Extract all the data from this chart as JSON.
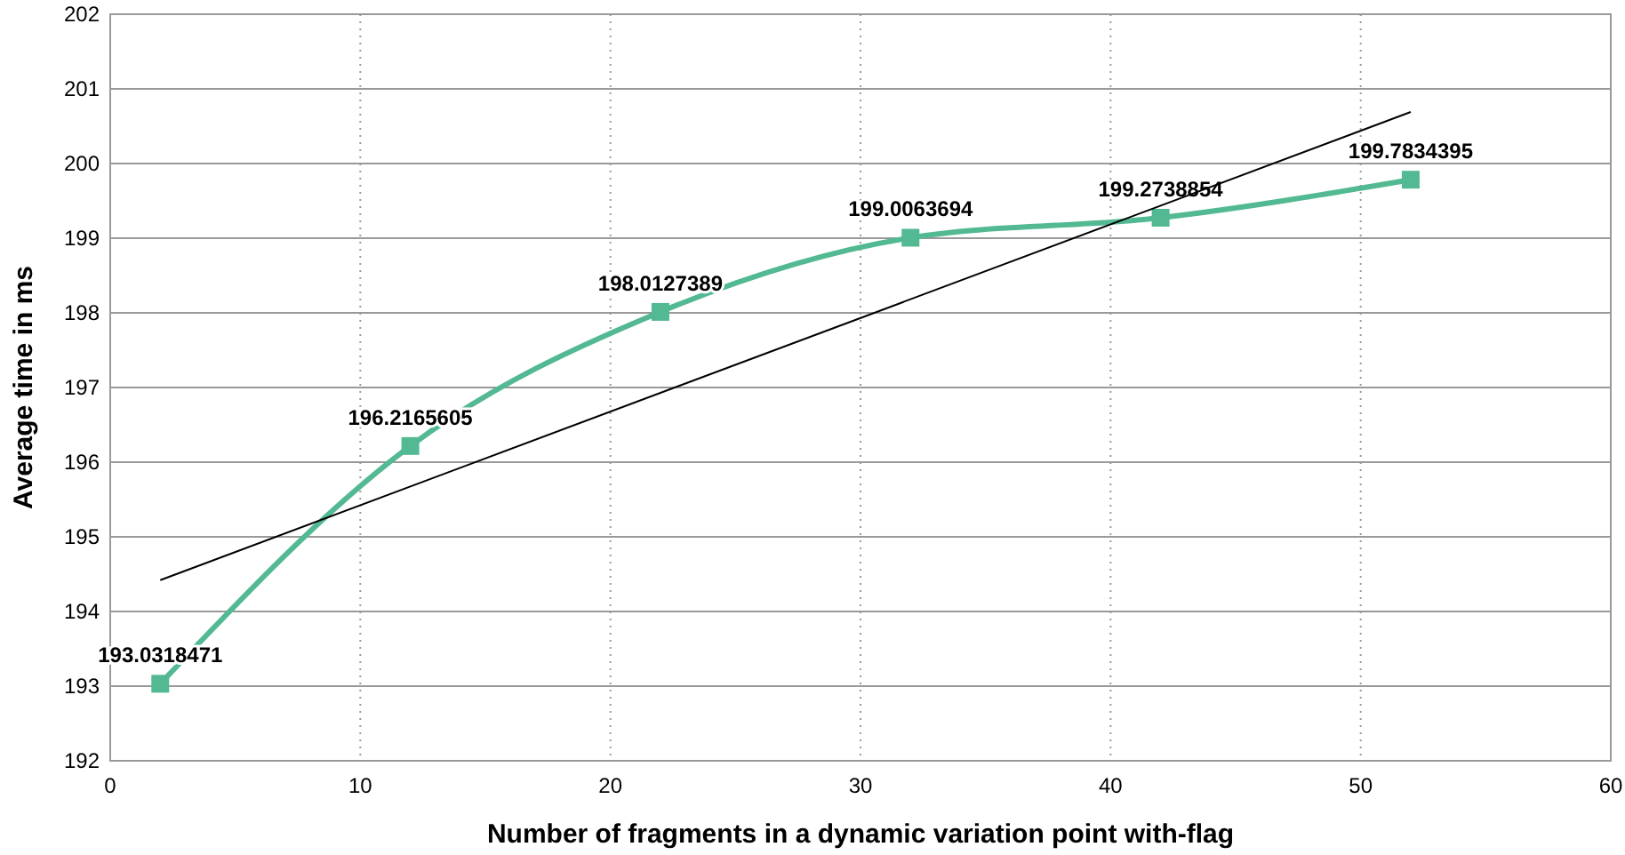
{
  "chart_data": {
    "type": "line",
    "xlabel": "Number of fragments in a dynamic variation point with-flag",
    "ylabel": "Average time in ms",
    "xlim": [
      0,
      60
    ],
    "xticks": [
      0,
      10,
      20,
      30,
      40,
      50,
      60
    ],
    "ylim": [
      192,
      202
    ],
    "yticks": [
      192,
      193,
      194,
      195,
      196,
      197,
      198,
      199,
      200,
      201,
      202
    ],
    "grid": true,
    "series": [
      {
        "type": "line",
        "color": "#52b992",
        "marker": "square",
        "x": [
          2,
          12,
          22,
          32,
          42,
          52
        ],
        "values": [
          193.0318471,
          196.2165605,
          198.0127389,
          199.0063694,
          199.2738854,
          199.7834395
        ],
        "value_labels": [
          "193.0318471",
          "196.2165605",
          "198.0127389",
          "199.0063694",
          "199.2738854",
          "199.7834395"
        ]
      },
      {
        "type": "line",
        "color": "#000000",
        "marker": "none",
        "x": [
          2,
          52
        ],
        "values": [
          194.42,
          200.69
        ]
      }
    ]
  }
}
